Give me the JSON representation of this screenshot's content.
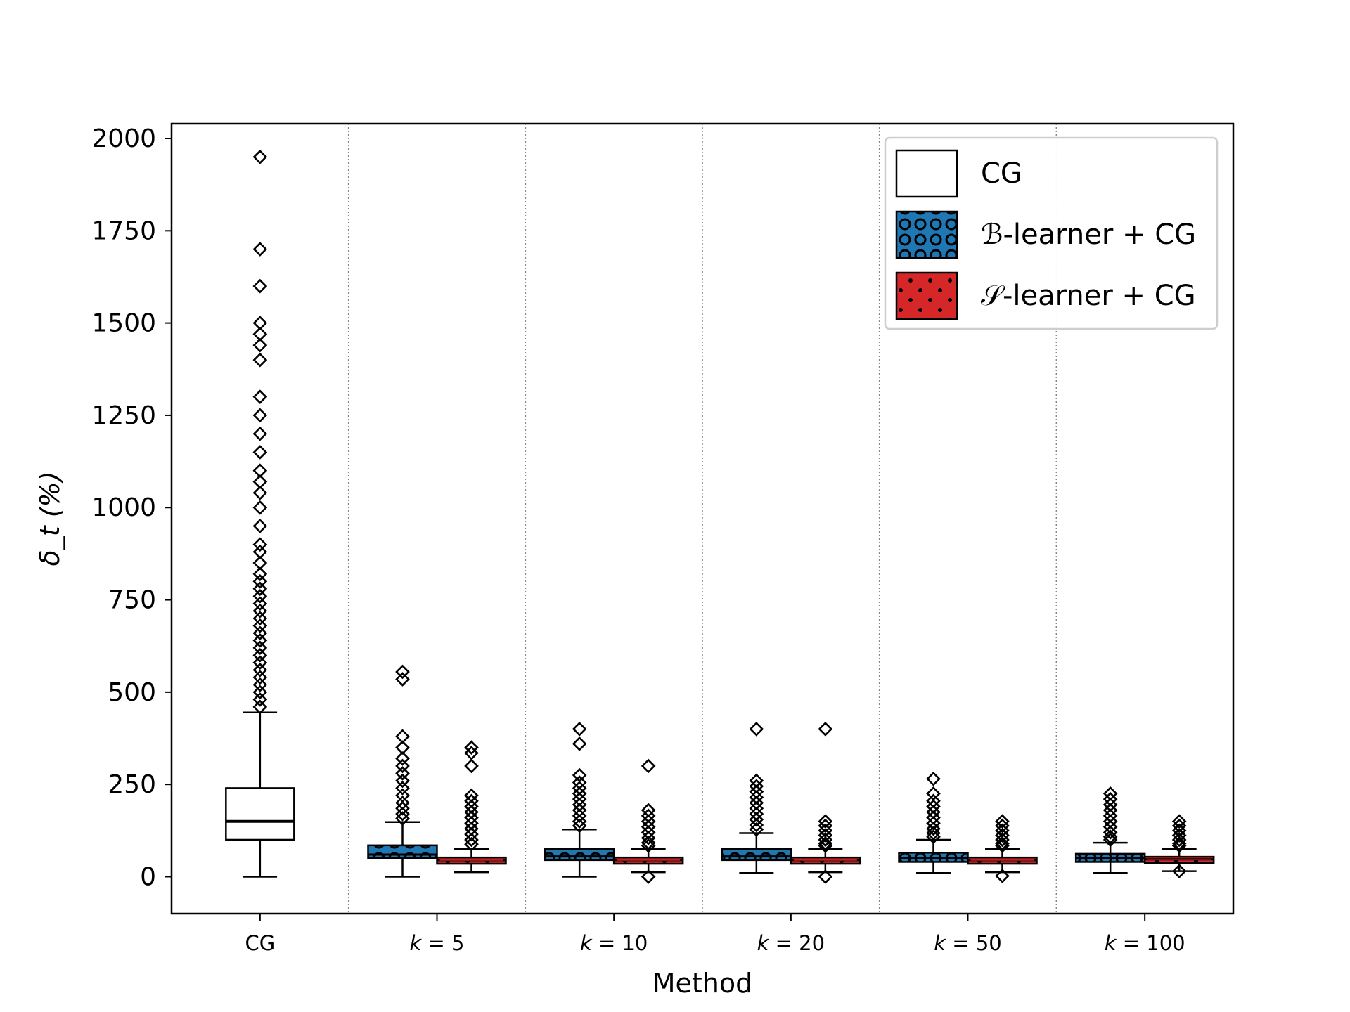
{
  "chart_data": {
    "type": "box",
    "title": "",
    "xlabel": "Method",
    "ylabel": "δ_t (%)",
    "ylim": [
      -100,
      2040
    ],
    "yticks": [
      0,
      250,
      500,
      750,
      1000,
      1250,
      1500,
      1750,
      2000
    ],
    "categories": [
      "CG",
      "k = 5",
      "k = 10",
      "k = 20",
      "k = 50",
      "k = 100"
    ],
    "category_labels": [
      {
        "italic": "",
        "text": "CG"
      },
      {
        "italic": "k",
        "text": " = 5"
      },
      {
        "italic": "k",
        "text": " = 10"
      },
      {
        "italic": "k",
        "text": " = 20"
      },
      {
        "italic": "k",
        "text": " = 50"
      },
      {
        "italic": "k",
        "text": " = 100"
      }
    ],
    "legend_position": "top-right",
    "grid": "vertical dotted separators between groups",
    "series": [
      {
        "name": "CG",
        "fill": "#ffffff",
        "pattern": "none",
        "boxes": [
          {
            "category": "CG",
            "q1": 100,
            "median": 150,
            "q3": 240,
            "whisker_low": 0,
            "whisker_high": 445,
            "outliers": [
              1950,
              1700,
              1600,
              1500,
              1470,
              1440,
              1400,
              1300,
              1250,
              1200,
              1150,
              1100,
              1070,
              1040,
              1000,
              950,
              900,
              880,
              850,
              820,
              800,
              780,
              760,
              740,
              720,
              700,
              680,
              660,
              640,
              620,
              600,
              580,
              560,
              540,
              520,
              500,
              480,
              460
            ]
          }
        ]
      },
      {
        "name": "ℬ-learner + CG",
        "fill": "#1f77b4",
        "pattern": "circles",
        "boxes": [
          {
            "category": "k = 5",
            "q1": 50,
            "median": 60,
            "q3": 85,
            "whisker_low": 0,
            "whisker_high": 148,
            "outliers": [
              555,
              535,
              380,
              350,
              320,
              300,
              280,
              260,
              240,
              220,
              200,
              185,
              170,
              158
            ]
          },
          {
            "category": "k = 10",
            "q1": 45,
            "median": 55,
            "q3": 75,
            "whisker_low": 0,
            "whisker_high": 128,
            "outliers": [
              400,
              360,
              275,
              255,
              240,
              225,
              210,
              195,
              180,
              165,
              150,
              138
            ]
          },
          {
            "category": "k = 20",
            "q1": 45,
            "median": 55,
            "q3": 75,
            "whisker_low": 10,
            "whisker_high": 118,
            "outliers": [
              400,
              260,
              245,
              230,
              215,
              200,
              185,
              170,
              155,
              140,
              128
            ]
          },
          {
            "category": "k = 50",
            "q1": 40,
            "median": 50,
            "q3": 65,
            "whisker_low": 10,
            "whisker_high": 100,
            "outliers": [
              265,
              225,
              205,
              190,
              175,
              160,
              145,
              130,
              118,
              108
            ]
          },
          {
            "category": "k = 100",
            "q1": 40,
            "median": 50,
            "q3": 62,
            "whisker_low": 10,
            "whisker_high": 92,
            "outliers": [
              225,
              210,
              195,
              180,
              165,
              150,
              135,
              120,
              108,
              100
            ]
          }
        ]
      },
      {
        "name": "𝒮-learner + CG",
        "fill": "#d62728",
        "pattern": "dots",
        "boxes": [
          {
            "category": "k = 5",
            "q1": 35,
            "median": 45,
            "q3": 52,
            "whisker_low": 12,
            "whisker_high": 75,
            "outliers": [
              350,
              335,
              300,
              220,
              205,
              190,
              175,
              160,
              145,
              130,
              115,
              100,
              88
            ]
          },
          {
            "category": "k = 10",
            "q1": 35,
            "median": 45,
            "q3": 52,
            "whisker_low": 12,
            "whisker_high": 75,
            "outliers": [
              300,
              180,
              165,
              150,
              135,
              120,
              105,
              92,
              84,
              0
            ]
          },
          {
            "category": "k = 20",
            "q1": 35,
            "median": 45,
            "q3": 52,
            "whisker_low": 12,
            "whisker_high": 75,
            "outliers": [
              400,
              150,
              138,
              125,
              112,
              100,
              90,
              84,
              0
            ]
          },
          {
            "category": "k = 50",
            "q1": 35,
            "median": 45,
            "q3": 52,
            "whisker_low": 12,
            "whisker_high": 75,
            "outliers": [
              150,
              138,
              125,
              112,
              100,
              90,
              84,
              2
            ]
          },
          {
            "category": "k = 100",
            "q1": 37,
            "median": 47,
            "q3": 54,
            "whisker_low": 15,
            "whisker_high": 75,
            "outliers": [
              150,
              138,
              125,
              112,
              100,
              90,
              84,
              15
            ]
          }
        ]
      }
    ]
  }
}
